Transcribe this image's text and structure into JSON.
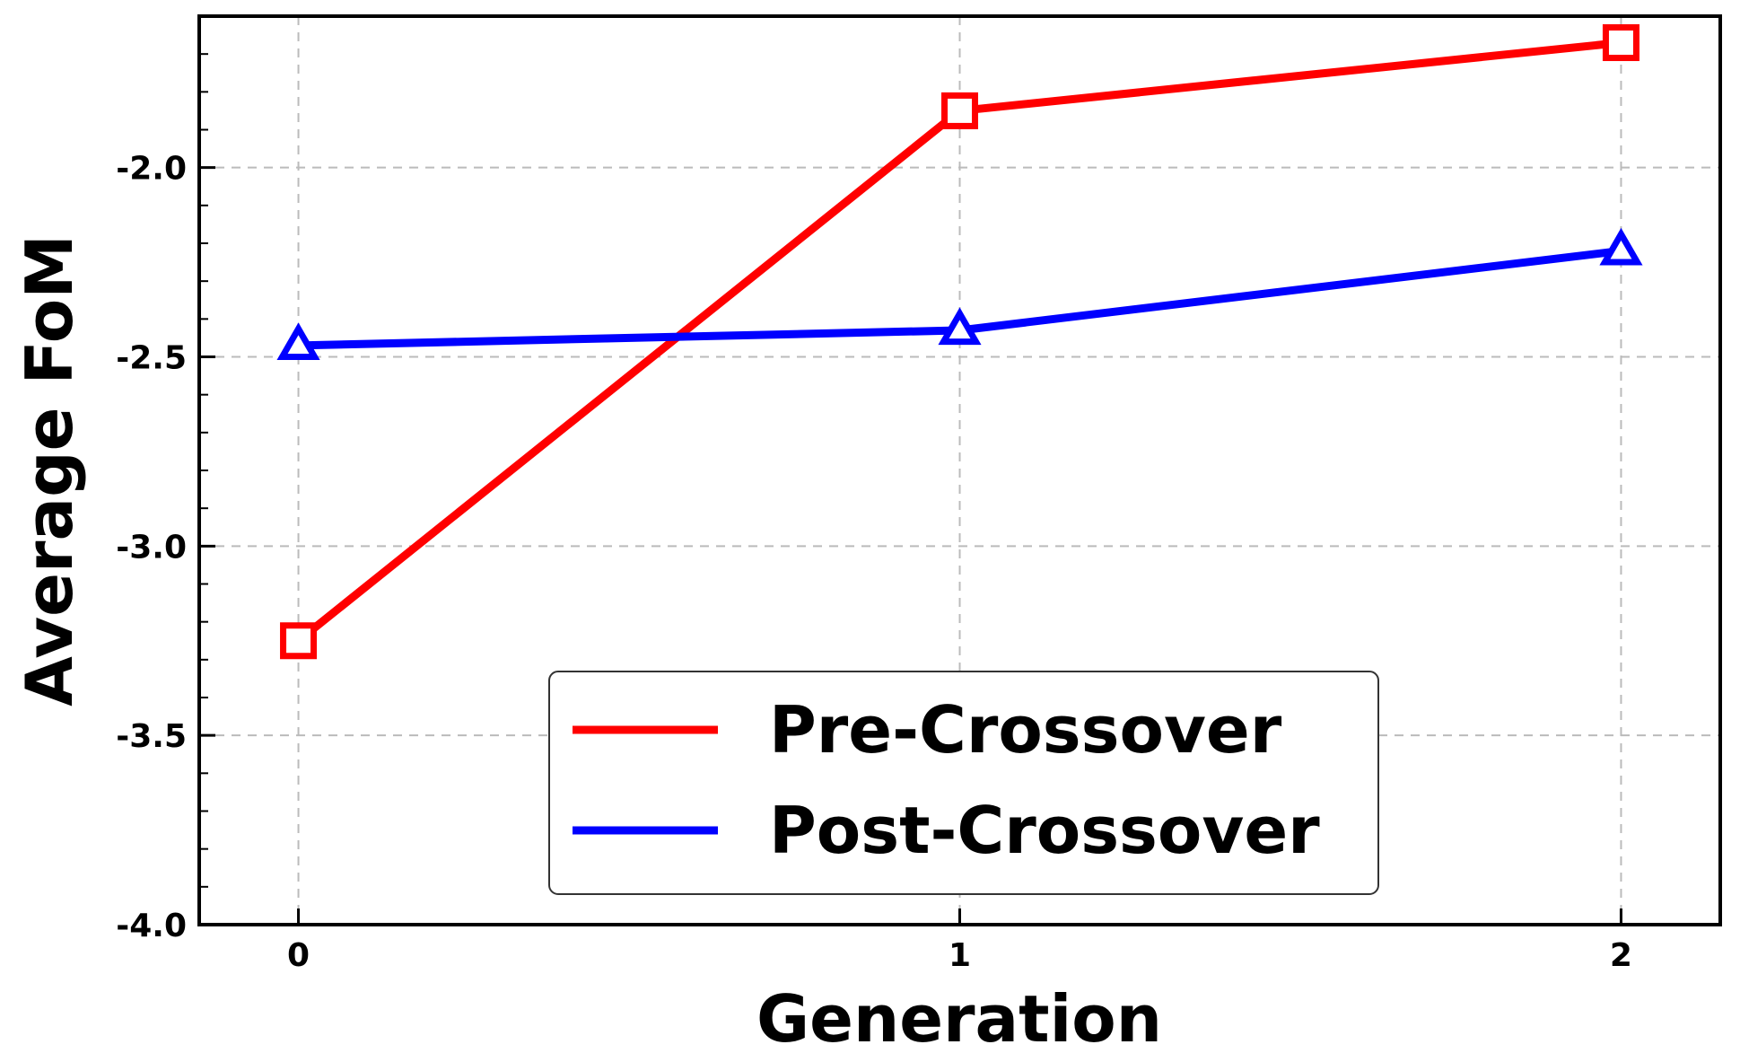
{
  "chart_data": {
    "type": "line",
    "title": "",
    "xlabel": "Generation",
    "ylabel": "Average FoM",
    "x": [
      0,
      1,
      2
    ],
    "x_tick_labels": [
      "0",
      "1",
      "2"
    ],
    "xlim": [
      -0.15,
      2.15
    ],
    "ylim": [
      -4.0,
      -1.6
    ],
    "y_ticks": [
      -2.0,
      -2.5,
      -3.0,
      -3.5,
      -4.0
    ],
    "y_tick_labels": [
      "-2.0",
      "-2.5",
      "-3.0",
      "-3.5",
      "-4.0"
    ],
    "grid": true,
    "legend_position": "lower-center",
    "series": [
      {
        "name": "Pre-Crossover",
        "color": "#ff0000",
        "marker": "square",
        "values": [
          -3.25,
          -1.85,
          -1.67
        ]
      },
      {
        "name": "Post-Crossover",
        "color": "#0000ff",
        "marker": "triangle",
        "values": [
          -2.47,
          -2.43,
          -2.22
        ]
      }
    ]
  }
}
